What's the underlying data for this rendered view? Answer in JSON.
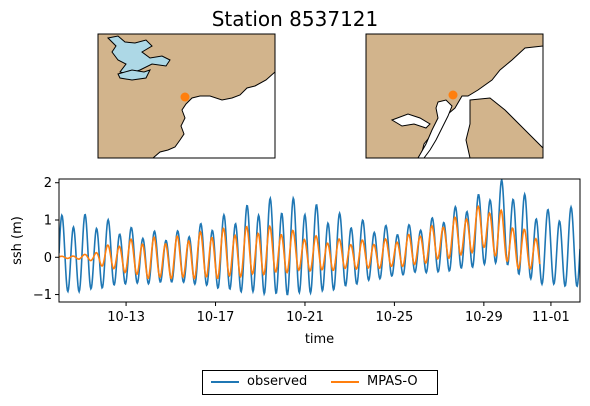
{
  "figure": {
    "title": "Station 8537121"
  },
  "maps": [
    {
      "name": "regional-map",
      "land_color": "#d2b48c",
      "water_color": "#add8e6",
      "marker_color": "#ff7f0e"
    },
    {
      "name": "local-map",
      "land_color": "#d2b48c",
      "water_color": "#ffffff",
      "marker_color": "#ff7f0e"
    }
  ],
  "chart_data": {
    "type": "line",
    "title": "",
    "xlabel": "time",
    "ylabel": "ssh (m)",
    "x_start": "10-10",
    "x_end": "11-03",
    "xticks": [
      "10-13",
      "10-17",
      "10-21",
      "10-25",
      "10-29",
      "11-01"
    ],
    "xtick_days": [
      3,
      7,
      11,
      15,
      19,
      22
    ],
    "yticks": [
      "−1",
      "0",
      "1",
      "2"
    ],
    "ytick_values": [
      -1,
      0,
      1,
      2
    ],
    "ylim": [
      -1.2,
      2.1
    ],
    "xlim_days": [
      0,
      23.3
    ],
    "tidal_period_days": 0.5175,
    "grid": false,
    "legend_position": "below-center",
    "series": [
      {
        "name": "observed",
        "color": "#1f77b4",
        "envelope_days": [
          0,
          1,
          2,
          3,
          4,
          5,
          6,
          7,
          8,
          9,
          10,
          11,
          12,
          13,
          14,
          15,
          16,
          17,
          18,
          19,
          19.8,
          20.6,
          21.5,
          22.5,
          23.3
        ],
        "center": [
          0,
          0.05,
          0.05,
          0,
          -0.05,
          -0.05,
          0,
          0.05,
          0.1,
          0.2,
          0.2,
          0.2,
          0.1,
          0.1,
          0.1,
          0.1,
          0.2,
          0.3,
          0.5,
          0.7,
          0.9,
          0.6,
          0.2,
          0.2,
          0.2
        ],
        "amplitude": [
          0.95,
          0.95,
          0.85,
          0.7,
          0.65,
          0.6,
          0.7,
          0.85,
          1.0,
          1.15,
          1.2,
          1.15,
          1.0,
          0.85,
          0.7,
          0.6,
          0.6,
          0.7,
          0.8,
          0.9,
          1.0,
          1.05,
          0.9,
          0.95,
          1.0
        ]
      },
      {
        "name": "MPAS-O",
        "color": "#ff7f0e",
        "start_day": 0,
        "end_day": 21.5,
        "envelope_days": [
          0,
          1,
          1.5,
          2,
          3,
          4,
          5,
          6,
          7,
          8,
          9,
          10,
          11,
          12,
          13,
          14,
          15,
          16,
          17,
          18,
          19,
          19.8,
          20.6,
          21.5
        ],
        "center": [
          0,
          0,
          0,
          0,
          0,
          -0.05,
          -0.05,
          0,
          0.05,
          0.1,
          0.15,
          0.15,
          0.1,
          0.05,
          0.05,
          0.05,
          0.1,
          0.2,
          0.4,
          0.55,
          0.8,
          0.55,
          0.2,
          0.1
        ],
        "amplitude": [
          0.02,
          0.05,
          0.1,
          0.25,
          0.4,
          0.5,
          0.5,
          0.55,
          0.6,
          0.6,
          0.6,
          0.55,
          0.45,
          0.4,
          0.35,
          0.35,
          0.35,
          0.4,
          0.45,
          0.5,
          0.55,
          0.6,
          0.5,
          0.45
        ]
      }
    ]
  }
}
